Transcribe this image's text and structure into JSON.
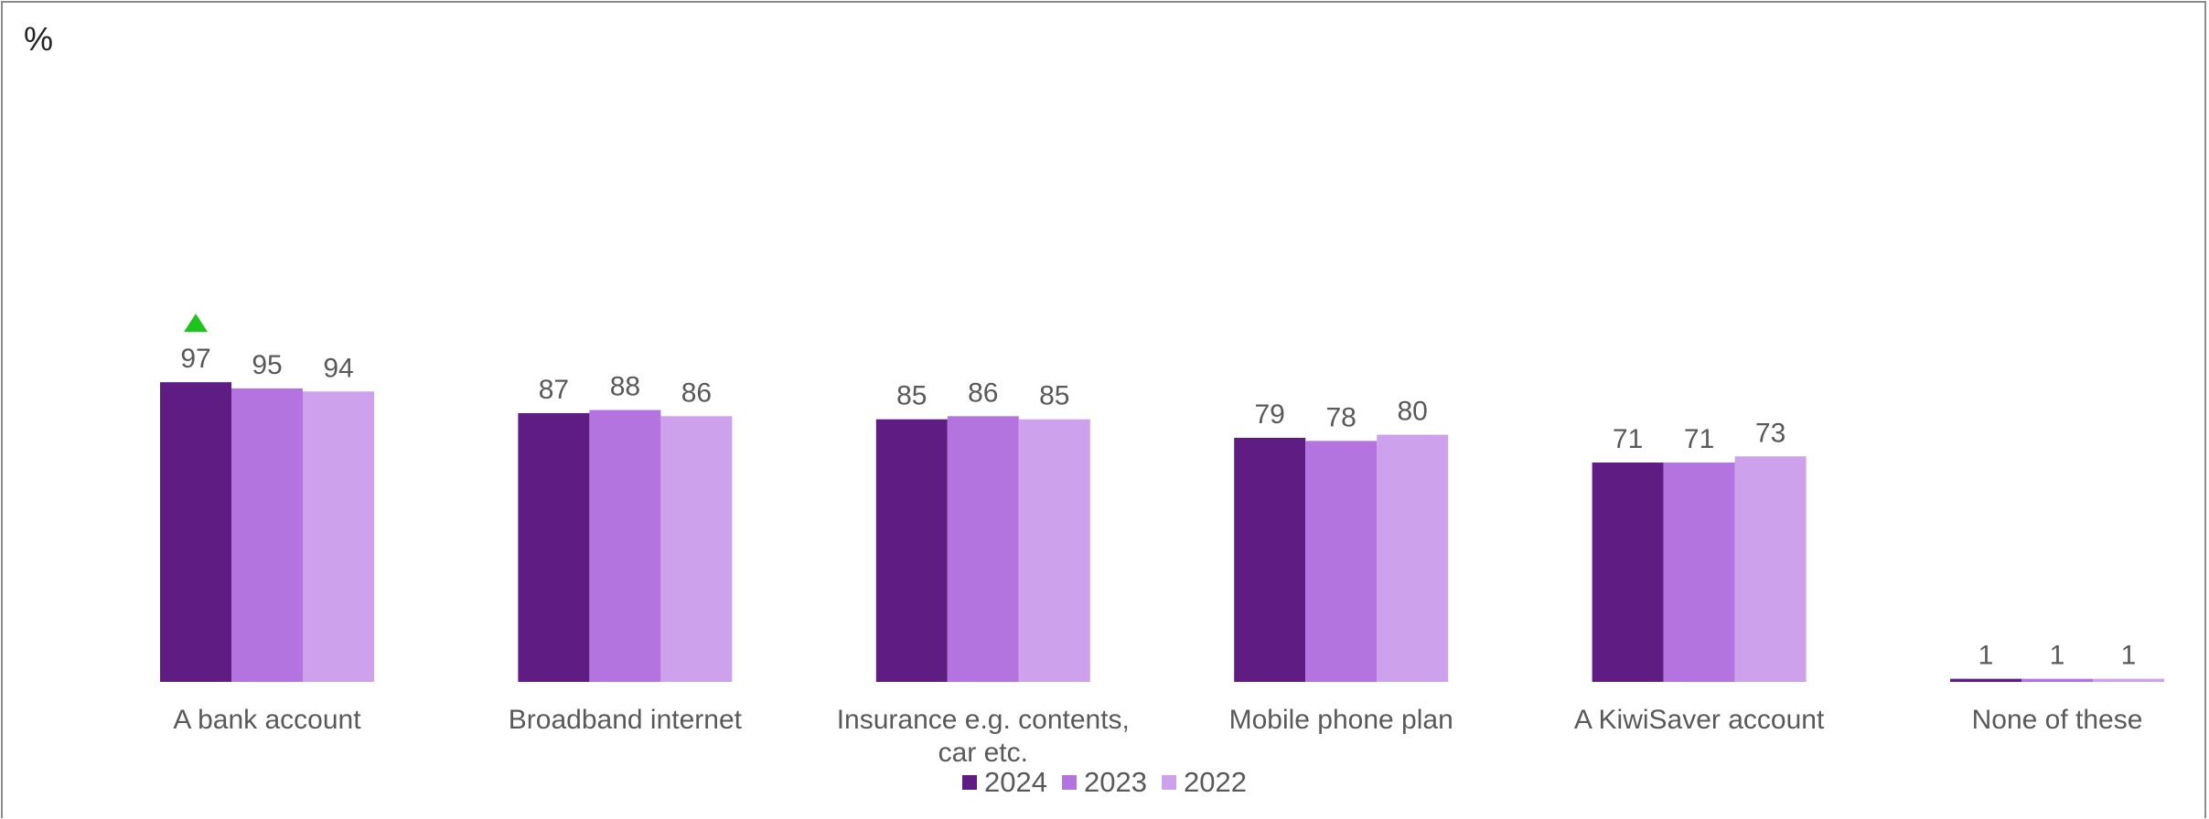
{
  "unit_label": "%",
  "colors": {
    "2024": "#5f1d84",
    "2023": "#b374e0",
    "2022": "#cda1ec",
    "up_marker": "#1ec41e",
    "label_text": "#595959"
  },
  "chart_data": {
    "type": "bar",
    "title": "",
    "xlabel": "",
    "ylabel": "%",
    "ylim": [
      0,
      100
    ],
    "grid": false,
    "legend_position": "bottom",
    "categories": [
      "A bank account",
      "Broadband internet",
      "Insurance e.g. contents, car etc.",
      "Mobile phone plan",
      "A KiwiSaver account",
      "None of these"
    ],
    "series": [
      {
        "name": "2024",
        "values": [
          97,
          87,
          85,
          79,
          71,
          1
        ]
      },
      {
        "name": "2023",
        "values": [
          95,
          88,
          86,
          78,
          71,
          1
        ]
      },
      {
        "name": "2022",
        "values": [
          94,
          86,
          85,
          80,
          73,
          1
        ]
      }
    ],
    "annotations": [
      {
        "type": "significant-increase-marker",
        "category": "A bank account",
        "series": "2024"
      }
    ]
  }
}
